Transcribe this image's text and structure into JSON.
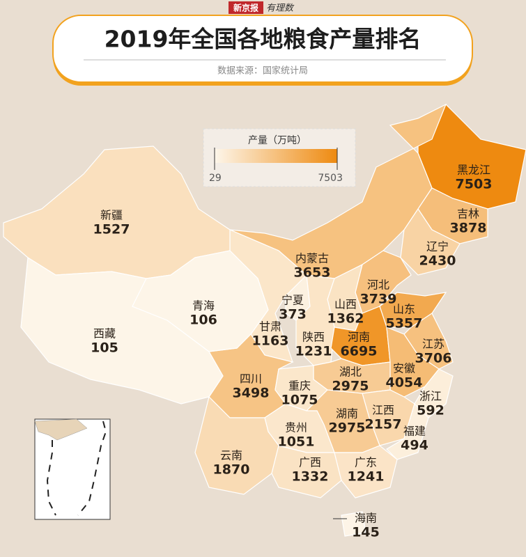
{
  "header": {
    "brand": "新京报",
    "brand_sub": "有理数",
    "title": "2019年全国各地粮食产量排名",
    "source": "数据来源：国家统计局"
  },
  "chart_data": {
    "type": "choropleth",
    "legend_title": "产量（万吨）",
    "range": [
      29,
      7503
    ],
    "color_min": "#fdf6ea",
    "color_max": "#ee8a10",
    "regions": [
      {
        "name": "黑龙江",
        "value": 7503
      },
      {
        "name": "吉林",
        "value": 3878
      },
      {
        "name": "辽宁",
        "value": 2430
      },
      {
        "name": "内蒙古",
        "value": 3653
      },
      {
        "name": "河北",
        "value": 3739
      },
      {
        "name": "宁夏",
        "value": 373
      },
      {
        "name": "山西",
        "value": 1362
      },
      {
        "name": "山东",
        "value": 5357
      },
      {
        "name": "甘肃",
        "value": 1163
      },
      {
        "name": "陕西",
        "value": 1231
      },
      {
        "name": "河南",
        "value": 6695
      },
      {
        "name": "江苏",
        "value": 3706
      },
      {
        "name": "安徽",
        "value": 4054
      },
      {
        "name": "湖北",
        "value": 2975
      },
      {
        "name": "四川",
        "value": 3498
      },
      {
        "name": "重庆",
        "value": 1075
      },
      {
        "name": "浙江",
        "value": 592
      },
      {
        "name": "江西",
        "value": 2157
      },
      {
        "name": "湖南",
        "value": 2975
      },
      {
        "name": "贵州",
        "value": 1051
      },
      {
        "name": "福建",
        "value": 494
      },
      {
        "name": "云南",
        "value": 1870
      },
      {
        "name": "广西",
        "value": 1332
      },
      {
        "name": "广东",
        "value": 1241
      },
      {
        "name": "海南",
        "value": 145
      },
      {
        "name": "新疆",
        "value": 1527
      },
      {
        "name": "西藏",
        "value": 105
      },
      {
        "name": "青海",
        "value": 106
      }
    ]
  }
}
